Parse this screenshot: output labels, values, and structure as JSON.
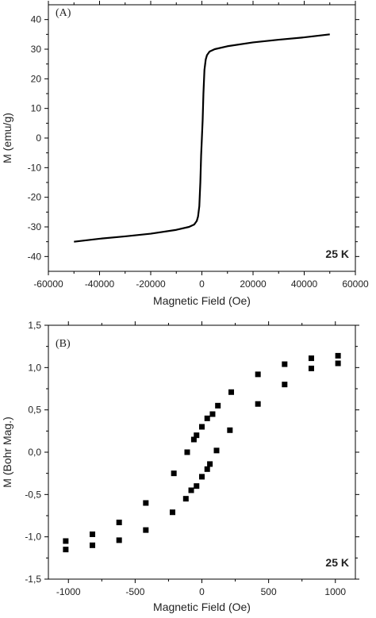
{
  "chart_data": [
    {
      "type": "line",
      "panel_label": "(A)",
      "annotation": "25 K",
      "xlabel": "Magnetic Field (Oe)",
      "ylabel": "M (emu/g)",
      "xlim": [
        -60000,
        60000
      ],
      "ylim": [
        -45,
        45
      ],
      "xticks": [
        -60000,
        -40000,
        -20000,
        0,
        20000,
        40000,
        60000
      ],
      "xtick_labels": [
        "-60000",
        "-40000",
        "-20000",
        "0",
        "20000",
        "40000",
        "60000"
      ],
      "yticks": [
        -40,
        -30,
        -20,
        -10,
        0,
        10,
        20,
        30,
        40
      ],
      "ytick_labels": [
        "-40",
        "-30",
        "-20",
        "-10",
        "0",
        "10",
        "20",
        "30",
        "40"
      ],
      "series": [
        {
          "x": [
            -50000,
            -40000,
            -30000,
            -20000,
            -10000,
            -5000,
            -3000,
            -2000,
            -1500,
            -1000,
            -600,
            -300,
            0,
            300,
            600,
            1000,
            1500,
            2000,
            3000,
            5000,
            10000,
            20000,
            30000,
            40000,
            50000
          ],
          "y": [
            -35,
            -34,
            -33.2,
            -32.3,
            -31,
            -30,
            -29.2,
            -28,
            -26.5,
            -23,
            -15,
            -6,
            0,
            6,
            15,
            23,
            26.5,
            28,
            29.2,
            30,
            31,
            32.3,
            33.2,
            34,
            35
          ]
        }
      ]
    },
    {
      "type": "scatter",
      "panel_label": "(B)",
      "annotation": "25 K",
      "xlabel": "Magnetic Field (Oe)",
      "ylabel": "M (Bohr Mag.)",
      "xlim": [
        -1150,
        1150
      ],
      "ylim": [
        -1.5,
        1.5
      ],
      "xticks": [
        -1000,
        -500,
        0,
        500,
        1000
      ],
      "xtick_labels": [
        "-1000",
        "-500",
        "0",
        "500",
        "1000"
      ],
      "yticks": [
        -1.5,
        -1.0,
        -0.5,
        0.0,
        0.5,
        1.0,
        1.5
      ],
      "ytick_labels": [
        "-1,5",
        "-1,0",
        "-0,5",
        "0,0",
        "0,5",
        "1,0",
        "1,5"
      ],
      "series": [
        {
          "x": [
            -1020,
            -820,
            -620,
            -420,
            -220,
            -120,
            -80,
            -40,
            0,
            40,
            60,
            110,
            210,
            420,
            620,
            820,
            1020,
            1020,
            820,
            620,
            420,
            220,
            120,
            80,
            40,
            0,
            -40,
            -60,
            -110,
            -210,
            -420,
            -620,
            -820,
            -1020
          ],
          "y": [
            -1.15,
            -1.1,
            -1.04,
            -0.92,
            -0.71,
            -0.55,
            -0.45,
            -0.4,
            -0.29,
            -0.2,
            -0.14,
            0.02,
            0.26,
            0.57,
            0.8,
            0.99,
            1.05,
            1.14,
            1.11,
            1.04,
            0.92,
            0.71,
            0.55,
            0.45,
            0.4,
            0.3,
            0.2,
            0.15,
            0.0,
            -0.25,
            -0.6,
            -0.83,
            -0.97,
            -1.05
          ]
        }
      ]
    }
  ]
}
